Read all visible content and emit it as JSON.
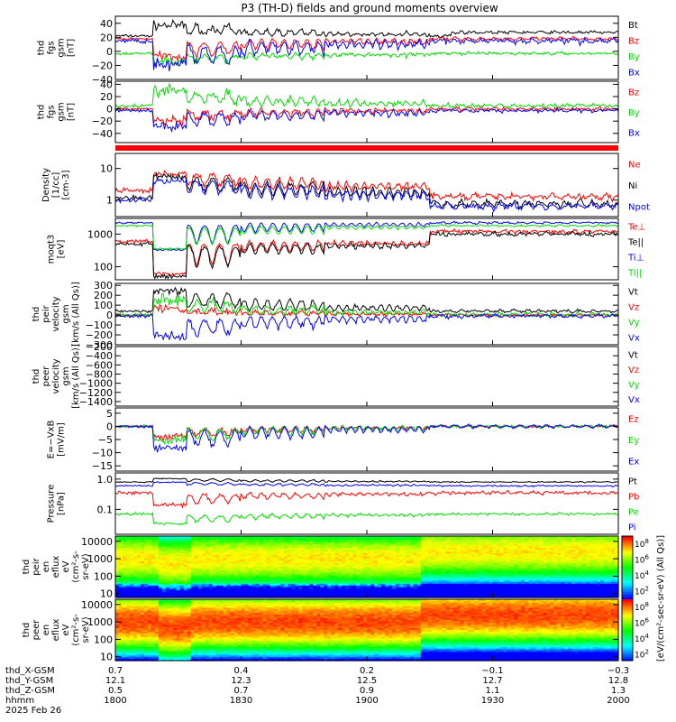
{
  "title": "P3 (TH-D) fields and ground moments overview",
  "chart_data": [
    {
      "type": "line",
      "ylabel": [
        "thd",
        "fgs",
        "gsm",
        "[nT]"
      ],
      "ylim": [
        -40,
        50
      ],
      "yticks": [
        {
          "v": 40,
          "label": "40"
        },
        {
          "v": 20,
          "label": "20"
        },
        {
          "v": 0,
          "label": "0"
        },
        {
          "v": -20,
          "label": "−20"
        },
        {
          "v": -40,
          "label": "−40"
        }
      ],
      "log": false,
      "series": [
        {
          "name": "Bt",
          "color": "#000000",
          "base": 22,
          "noise": 3,
          "eventAmp": 15
        },
        {
          "name": "Bz",
          "color": "#ff0000",
          "base": 18,
          "noise": 3,
          "eventAmp": -25
        },
        {
          "name": "By",
          "color": "#00dd00",
          "base": -3,
          "noise": 3,
          "eventAmp": -12
        },
        {
          "name": "Bx",
          "color": "#0000ff",
          "base": 15,
          "noise": 5,
          "eventAmp": -35
        }
      ]
    },
    {
      "type": "line",
      "ylabel": [
        "thd",
        "fgs",
        "gsm",
        "[nT]"
      ],
      "ylim": [
        -55,
        45
      ],
      "yticks": [
        {
          "v": 40,
          "label": "40"
        },
        {
          "v": 20,
          "label": "20"
        },
        {
          "v": 0,
          "label": "0"
        },
        {
          "v": -20,
          "label": "−20"
        },
        {
          "v": -40,
          "label": "−40"
        }
      ],
      "log": false,
      "series": [
        {
          "name": "Bz",
          "color": "#ff0000",
          "base": 0,
          "noise": 4,
          "eventAmp": -20
        },
        {
          "name": "By",
          "color": "#00dd00",
          "base": 5,
          "noise": 5,
          "eventAmp": 25
        },
        {
          "name": "Bx",
          "color": "#0000ff",
          "base": -3,
          "noise": 4,
          "eventAmp": -25
        }
      ]
    },
    {
      "type": "line",
      "ylabel": [
        "Density",
        "[1/cc]",
        "[cm-3]"
      ],
      "ylim": [
        0.3,
        30
      ],
      "yticks": [
        {
          "v": 10,
          "label": "10"
        },
        {
          "v": 1,
          "label": "1"
        }
      ],
      "log": true,
      "series": [
        {
          "name": "Ne",
          "color": "#ff0000",
          "base": 2.0,
          "noise": 0.15,
          "eventAmp": 2.5
        },
        {
          "name": "Ni",
          "color": "#000000",
          "base": 1.2,
          "noise": 0.15,
          "eventAmp": 3.5
        },
        {
          "name": "Npot",
          "color": "#0000ff",
          "base": 1.0,
          "noise": 0.15,
          "eventAmp": 3.0
        }
      ]
    },
    {
      "type": "line",
      "ylabel": [
        "moqt3",
        "[eV]"
      ],
      "ylim": [
        40,
        3000
      ],
      "yticks": [
        {
          "v": 1000,
          "label": "1000"
        },
        {
          "v": 100,
          "label": "100"
        }
      ],
      "log": true,
      "series": [
        {
          "name": "Te⊥",
          "color": "#ff0000",
          "base": 600,
          "noise": 0.1,
          "eventAmp": -0.9
        },
        {
          "name": "Te||",
          "color": "#000000",
          "base": 500,
          "noise": 0.1,
          "eventAmp": -0.9
        },
        {
          "name": "Ti⊥",
          "color": "#0000ff",
          "base": 2200,
          "noise": 0.05,
          "eventAmp": -0.85
        },
        {
          "name": "Ti||",
          "color": "#00dd00",
          "base": 1800,
          "noise": 0.05,
          "eventAmp": -0.8
        }
      ]
    },
    {
      "type": "line",
      "ylabel": [
        "thd",
        "peir",
        "velocity",
        "gsm",
        "[km/s (All Qs)]"
      ],
      "ylim": [
        -300,
        320
      ],
      "yticks": [
        {
          "v": 300,
          "label": "300"
        },
        {
          "v": 200,
          "label": "200"
        },
        {
          "v": 100,
          "label": "100"
        },
        {
          "v": 0,
          "label": "0"
        },
        {
          "v": -100,
          "label": "−100"
        },
        {
          "v": -200,
          "label": "−200"
        },
        {
          "v": -300,
          "label": "−300"
        }
      ],
      "log": false,
      "series": [
        {
          "name": "Vt",
          "color": "#000000",
          "base": 40,
          "noise": 20,
          "eventAmp": 200
        },
        {
          "name": "Vz",
          "color": "#ff0000",
          "base": 0,
          "noise": 20,
          "eventAmp": 60
        },
        {
          "name": "Vy",
          "color": "#00dd00",
          "base": 5,
          "noise": 25,
          "eventAmp": 150
        },
        {
          "name": "Vx",
          "color": "#0000ff",
          "base": -10,
          "noise": 25,
          "eventAmp": -200
        }
      ]
    },
    {
      "type": "line",
      "ylabel": [
        "thd",
        "peer",
        "velocity",
        "gsm",
        "[km/s (All Qs)]"
      ],
      "ylim": [
        -1500,
        -200
      ],
      "yticks": [
        {
          "v": -200,
          "label": "−200"
        },
        {
          "v": -400,
          "label": "−400"
        },
        {
          "v": -600,
          "label": "−600"
        },
        {
          "v": -800,
          "label": "−800"
        },
        {
          "v": -1000,
          "label": "−1000"
        },
        {
          "v": -1200,
          "label": "−1200"
        },
        {
          "v": -1400,
          "label": "−1400"
        }
      ],
      "log": false,
      "series": [
        {
          "name": "Vt",
          "color": "#000000"
        },
        {
          "name": "Vz",
          "color": "#ff0000"
        },
        {
          "name": "Vy",
          "color": "#00dd00"
        },
        {
          "name": "Vx",
          "color": "#0000ff"
        }
      ]
    },
    {
      "type": "line",
      "ylabel": [
        "E=−VxB",
        "[mV/m]"
      ],
      "ylim": [
        -17,
        7
      ],
      "yticks": [
        {
          "v": 5,
          "label": "5"
        },
        {
          "v": 0,
          "label": "0"
        },
        {
          "v": -5,
          "label": "−5"
        },
        {
          "v": -10,
          "label": "−10"
        },
        {
          "v": -15,
          "label": "−15"
        }
      ],
      "log": false,
      "series": [
        {
          "name": "Ez",
          "color": "#ff0000",
          "base": 0,
          "noise": 0.7,
          "eventAmp": -4
        },
        {
          "name": "Ey",
          "color": "#00dd00",
          "base": 0,
          "noise": 0.8,
          "eventAmp": -5
        },
        {
          "name": "Ex",
          "color": "#0000ff",
          "base": 0,
          "noise": 0.7,
          "eventAmp": -8
        }
      ]
    },
    {
      "type": "line",
      "ylabel": [
        "Pressure",
        "[nPa]"
      ],
      "ylim": [
        0.015,
        1.6
      ],
      "yticks": [
        {
          "v": 1.0,
          "label": "1.0"
        },
        {
          "v": 0.1,
          "label": "0.1"
        }
      ],
      "log": true,
      "series": [
        {
          "name": "Pt",
          "color": "#000000",
          "base": 0.8,
          "noise": 0.03,
          "eventAmp": 0.3
        },
        {
          "name": "Pb",
          "color": "#ff0000",
          "base": 0.35,
          "noise": 0.1,
          "eventAmp": -0.6
        },
        {
          "name": "Pe",
          "color": "#00dd00",
          "base": 0.07,
          "noise": 0.08,
          "eventAmp": -0.5
        },
        {
          "name": "Pi",
          "color": "#0000ff",
          "base": 0.6,
          "noise": 0.04,
          "eventAmp": 0.3
        }
      ]
    },
    {
      "type": "heatmap",
      "ylabel": [
        "thd",
        "peir",
        "en",
        "eflux",
        "eV",
        "(cm²-s-",
        "sr-eV)"
      ],
      "ylim": [
        6,
        20000
      ],
      "yticks": [
        {
          "v": 10000,
          "label": "10000"
        },
        {
          "v": 1000,
          "label": "1000"
        },
        {
          "v": 100,
          "label": "100"
        },
        {
          "v": 10,
          "label": "10"
        }
      ],
      "log": true,
      "peak": 6.6
    },
    {
      "type": "heatmap",
      "ylabel": [
        "thd",
        "peer",
        "en",
        "eflux",
        "eV",
        "(cm²-s-",
        "sr-eV)"
      ],
      "ylim": [
        6,
        20000
      ],
      "yticks": [
        {
          "v": 10000,
          "label": "10000"
        },
        {
          "v": 1000,
          "label": "1000"
        },
        {
          "v": 100,
          "label": "100"
        },
        {
          "v": 10,
          "label": "10"
        }
      ],
      "log": true,
      "peak": 7.6
    }
  ],
  "colorbar": {
    "label": "[eV/(cm²-sec-sr-eV) (All Qs)]",
    "ticks": [
      {
        "exp": "8"
      },
      {
        "exp": "6"
      },
      {
        "exp": "4"
      },
      {
        "exp": "2"
      },
      {
        "exp": "8"
      },
      {
        "exp": "6"
      },
      {
        "exp": "4"
      },
      {
        "exp": "2"
      }
    ]
  },
  "xaxis": {
    "rowlabels": [
      "thd_X-GSM",
      "thd_Y-GSM",
      "thd_Z-GSM",
      "hhmm",
      "2025 Feb 26"
    ],
    "ticks": [
      {
        "t": 0,
        "vals": [
          "0.7",
          "12.1",
          "0.5",
          "1800"
        ]
      },
      {
        "t": 30,
        "vals": [
          "0.4",
          "12.3",
          "0.7",
          "1830"
        ]
      },
      {
        "t": 60,
        "vals": [
          "0.2",
          "12.5",
          "0.9",
          "1900"
        ]
      },
      {
        "t": 90,
        "vals": [
          "−0.1",
          "12.7",
          "1.1",
          "1930"
        ]
      },
      {
        "t": 120,
        "vals": [
          "−0.3",
          "12.8",
          "1.3",
          "2000"
        ]
      }
    ]
  }
}
